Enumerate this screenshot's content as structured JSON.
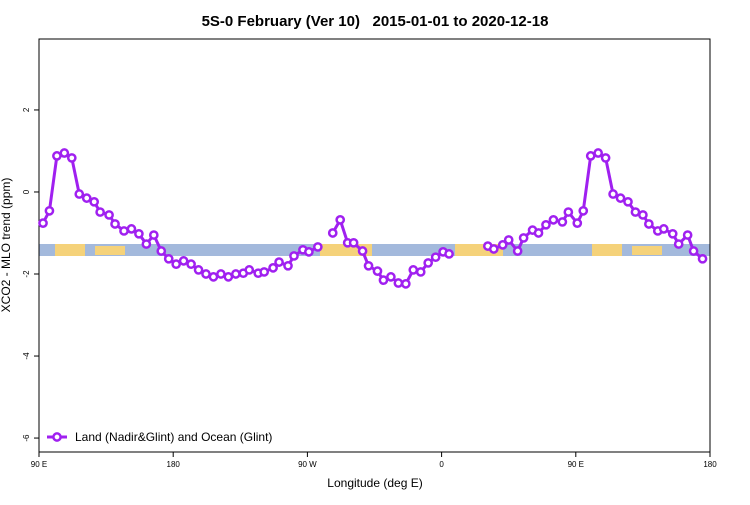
{
  "chart_data": {
    "type": "line",
    "title": "5S-0 February (Ver 10)   2015-01-01 to 2020-12-18",
    "x_label": "Longitude (deg E)",
    "y_label": "XCO2 - MLO trend (ppm)",
    "xlim": [
      90,
      540
    ],
    "ylim": [
      -6.34,
      3.73
    ],
    "xticks": [
      {
        "value": 90,
        "label": "90 E"
      },
      {
        "value": 180,
        "label": "180"
      },
      {
        "value": 270,
        "label": "90 W"
      },
      {
        "value": 360,
        "label": "0"
      },
      {
        "value": 450,
        "label": "90 E"
      },
      {
        "value": 540,
        "label": "180"
      }
    ],
    "yticks": [
      2,
      0,
      -2,
      -4,
      -6
    ],
    "legend": "bottom-left",
    "x": [
      92.7,
      97,
      102,
      107,
      112,
      117,
      122,
      127,
      131,
      137,
      141,
      147,
      152,
      157,
      162,
      167,
      172,
      177,
      182,
      187,
      192,
      197,
      202,
      207,
      212,
      217,
      222,
      227,
      231,
      237,
      241,
      247,
      251,
      257,
      261,
      267,
      271,
      277,
      282,
      287,
      292,
      297,
      301,
      307,
      311,
      317,
      321,
      326,
      331,
      336,
      341,
      346,
      351,
      356,
      361,
      365,
      378,
      391,
      395,
      401,
      405,
      411,
      415,
      421,
      425,
      430,
      435,
      441,
      445,
      451,
      455,
      460,
      465,
      470,
      475,
      480,
      485,
      490,
      495,
      499,
      505,
      509,
      515,
      519,
      525,
      529,
      535
    ],
    "series": [
      {
        "name": "Land (Nadir&Glint) and Ocean (Glint)",
        "color": "#a020f0",
        "values": [
          -0.76,
          -0.46,
          0.88,
          0.95,
          0.83,
          -0.05,
          -0.15,
          -0.24,
          -0.49,
          -0.56,
          -0.78,
          -0.95,
          -0.9,
          -1.02,
          -1.27,
          -1.05,
          -1.44,
          -1.63,
          -1.76,
          -1.68,
          -1.76,
          -1.9,
          -2.0,
          -2.07,
          -2.0,
          -2.07,
          -2.0,
          -1.98,
          -1.9,
          -1.98,
          -1.95,
          -1.85,
          -1.71,
          -1.8,
          -1.56,
          -1.41,
          -1.46,
          -1.34,
          null,
          -1.0,
          -0.68,
          -1.24,
          -1.24,
          -1.44,
          -1.8,
          -1.93,
          -2.15,
          -2.07,
          -2.22,
          -2.24,
          -1.9,
          -1.95,
          -1.73,
          -1.59,
          -1.46,
          -1.51,
          null,
          -1.32,
          -1.39,
          -1.29,
          -1.17,
          -1.44,
          -1.12,
          -0.93,
          -1.0,
          -0.8,
          -0.68,
          -0.73,
          -0.49,
          -0.76,
          -0.46,
          0.88,
          0.95,
          0.83,
          -0.05,
          -0.15,
          -0.24,
          -0.49,
          -0.56,
          -0.78,
          -0.95,
          -0.9,
          -1.02,
          -1.27,
          -1.05,
          -1.44,
          -1.63
        ]
      }
    ]
  }
}
